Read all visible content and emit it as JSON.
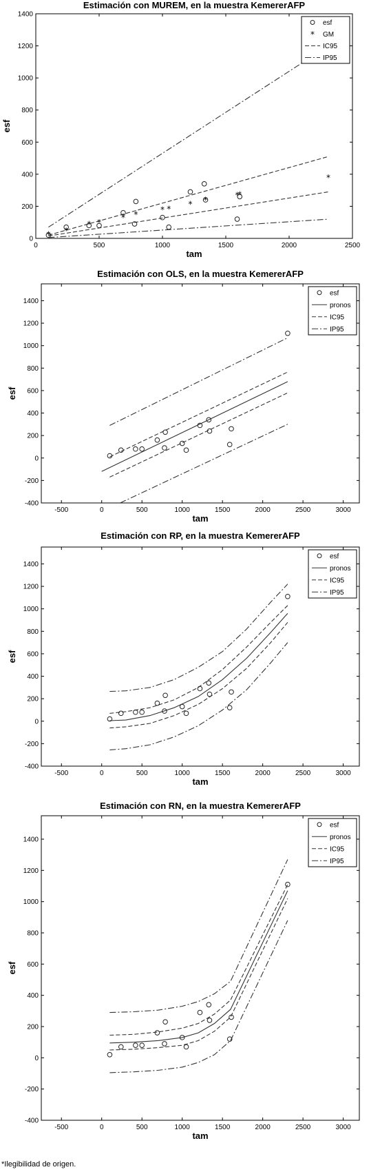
{
  "footnote": "*Ilegibilidad de origen.",
  "chart_data": [
    {
      "type": "scatter",
      "title": "Estimación con MUREM, en la muestra KemererAFP",
      "xlabel": "tam",
      "ylabel": "esf",
      "xlim": [
        0,
        2500
      ],
      "ylim": [
        0,
        1400
      ],
      "xticks": [
        0,
        500,
        1000,
        1500,
        2000,
        2500
      ],
      "yticks": [
        0,
        200,
        400,
        600,
        800,
        1000,
        1200,
        1400
      ],
      "legend_position": "top-right",
      "legend": [
        "esf",
        "GM",
        "IC95",
        "IP95"
      ],
      "points": {
        "esf": {
          "x": [
            100,
            240,
            420,
            500,
            690,
            780,
            790,
            1000,
            1050,
            1220,
            1330,
            1340,
            1590,
            1610,
            2310
          ],
          "y": [
            20,
            70,
            80,
            80,
            160,
            90,
            230,
            130,
            70,
            290,
            340,
            240,
            120,
            260,
            1110
          ]
        },
        "GM": {
          "x": [
            100,
            240,
            420,
            500,
            690,
            790,
            1000,
            1050,
            1220,
            1340,
            1590,
            1610,
            2310
          ],
          "y": [
            25,
            50,
            90,
            100,
            130,
            150,
            180,
            185,
            215,
            240,
            270,
            275,
            380
          ]
        }
      },
      "lines": [
        {
          "name": "IC95",
          "style": "dashed",
          "x": [
            100,
            2310
          ],
          "y": [
            20,
            510
          ]
        },
        {
          "name": "IC95",
          "style": "dashed",
          "x": [
            100,
            2310
          ],
          "y": [
            15,
            290
          ]
        },
        {
          "name": "IP95",
          "style": "dashdot",
          "x": [
            100,
            2310
          ],
          "y": [
            70,
            1200
          ]
        },
        {
          "name": "IP95",
          "style": "dashdot",
          "x": [
            100,
            2310
          ],
          "y": [
            5,
            120
          ]
        }
      ]
    },
    {
      "type": "scatter",
      "title": "Estimación con OLS, en la muestra KemererAFP",
      "xlabel": "tam",
      "ylabel": "esf",
      "xlim": [
        -750,
        3200
      ],
      "ylim": [
        -400,
        1550
      ],
      "xticks": [
        -500,
        0,
        500,
        1000,
        1500,
        2000,
        2500,
        3000
      ],
      "yticks": [
        -400,
        -200,
        0,
        200,
        400,
        600,
        800,
        1000,
        1200,
        1400
      ],
      "legend_position": "top-right",
      "legend": [
        "esf",
        "pronos",
        "IC95",
        "IP95"
      ],
      "points": {
        "esf": {
          "x": [
            100,
            240,
            420,
            500,
            690,
            780,
            790,
            1000,
            1050,
            1220,
            1330,
            1340,
            1590,
            1610,
            2310
          ],
          "y": [
            20,
            70,
            80,
            80,
            160,
            90,
            230,
            130,
            70,
            290,
            340,
            240,
            120,
            260,
            1110
          ]
        }
      },
      "lines": [
        {
          "name": "pronos",
          "style": "solid",
          "x": [
            0,
            2310
          ],
          "y": [
            -120,
            680
          ]
        },
        {
          "name": "IC95",
          "style": "dashed",
          "x": [
            100,
            2310
          ],
          "y": [
            10,
            765
          ]
        },
        {
          "name": "IC95",
          "style": "dashed",
          "x": [
            100,
            2310
          ],
          "y": [
            -170,
            580
          ]
        },
        {
          "name": "IP95",
          "style": "dashdot",
          "x": [
            100,
            2310
          ],
          "y": [
            290,
            1070
          ]
        },
        {
          "name": "IP95",
          "style": "dashdot",
          "x": [
            230,
            2310
          ],
          "y": [
            -400,
            300
          ]
        }
      ]
    },
    {
      "type": "scatter",
      "title": "Estimación con RP, en la muestra KemererAFP",
      "xlabel": "tam",
      "ylabel": "esf",
      "xlim": [
        -750,
        3200
      ],
      "ylim": [
        -400,
        1550
      ],
      "xticks": [
        -500,
        0,
        500,
        1000,
        1500,
        2000,
        2500,
        3000
      ],
      "yticks": [
        -400,
        -200,
        0,
        200,
        400,
        600,
        800,
        1000,
        1200,
        1400
      ],
      "legend_position": "top-right",
      "legend": [
        "esf",
        "pronos",
        "IC95",
        "IP95"
      ],
      "points": {
        "esf": {
          "x": [
            100,
            240,
            420,
            500,
            690,
            780,
            790,
            1000,
            1050,
            1220,
            1330,
            1340,
            1590,
            1610,
            2310
          ],
          "y": [
            20,
            70,
            80,
            80,
            160,
            90,
            230,
            130,
            70,
            290,
            340,
            240,
            120,
            260,
            1110
          ]
        }
      },
      "lines": [
        {
          "name": "pronos",
          "style": "solid",
          "x": [
            100,
            300,
            600,
            900,
            1200,
            1500,
            1800,
            2100,
            2310
          ],
          "y": [
            5,
            10,
            50,
            120,
            220,
            370,
            560,
            790,
            960
          ]
        },
        {
          "name": "IC95",
          "style": "dashed",
          "x": [
            100,
            300,
            600,
            900,
            1200,
            1500,
            1800,
            2100,
            2310
          ],
          "y": [
            70,
            85,
            120,
            190,
            300,
            460,
            660,
            880,
            1030
          ]
        },
        {
          "name": "IC95",
          "style": "dashed",
          "x": [
            100,
            300,
            600,
            900,
            1200,
            1500,
            1800,
            2100,
            2310
          ],
          "y": [
            -60,
            -50,
            -20,
            50,
            150,
            290,
            470,
            700,
            880
          ]
        },
        {
          "name": "IP95",
          "style": "dashdot",
          "x": [
            100,
            300,
            600,
            900,
            1200,
            1500,
            1800,
            2100,
            2310
          ],
          "y": [
            265,
            270,
            300,
            370,
            480,
            620,
            820,
            1060,
            1220
          ]
        },
        {
          "name": "IP95",
          "style": "dashdot",
          "x": [
            100,
            300,
            600,
            900,
            1200,
            1500,
            1800,
            2100,
            2310
          ],
          "y": [
            -255,
            -245,
            -210,
            -140,
            -40,
            100,
            280,
            520,
            700
          ]
        }
      ]
    },
    {
      "type": "scatter",
      "title": "Estimación con RN, en la muestra KemererAFP",
      "xlabel": "tam",
      "ylabel": "esf",
      "xlim": [
        -750,
        3200
      ],
      "ylim": [
        -400,
        1550
      ],
      "xticks": [
        -500,
        0,
        500,
        1000,
        1500,
        2000,
        2500,
        3000
      ],
      "yticks": [
        -400,
        -200,
        0,
        200,
        400,
        600,
        800,
        1000,
        1200,
        1400
      ],
      "legend_position": "top-right",
      "legend": [
        "esf",
        "pronos",
        "IC95",
        "IP95"
      ],
      "points": {
        "esf": {
          "x": [
            100,
            240,
            420,
            500,
            690,
            780,
            790,
            1000,
            1050,
            1220,
            1330,
            1340,
            1590,
            1610,
            2310
          ],
          "y": [
            20,
            70,
            80,
            80,
            160,
            90,
            230,
            130,
            70,
            290,
            340,
            240,
            120,
            260,
            1110
          ]
        }
      },
      "lines": [
        {
          "name": "pronos",
          "style": "solid",
          "x": [
            100,
            400,
            700,
            1000,
            1200,
            1400,
            1600,
            2310
          ],
          "y": [
            95,
            100,
            110,
            130,
            160,
            220,
            310,
            1070
          ]
        },
        {
          "name": "IC95",
          "style": "dashed",
          "x": [
            100,
            400,
            700,
            1000,
            1200,
            1400,
            1600,
            2310
          ],
          "y": [
            145,
            150,
            165,
            190,
            220,
            280,
            370,
            1110
          ]
        },
        {
          "name": "IC95",
          "style": "dashed",
          "x": [
            100,
            400,
            700,
            1000,
            1200,
            1400,
            1600,
            2310
          ],
          "y": [
            50,
            55,
            65,
            80,
            110,
            170,
            260,
            1020
          ]
        },
        {
          "name": "IP95",
          "style": "dashdot",
          "x": [
            100,
            400,
            700,
            1000,
            1200,
            1400,
            1600,
            2310
          ],
          "y": [
            290,
            295,
            305,
            330,
            360,
            410,
            490,
            1270
          ]
        },
        {
          "name": "IP95",
          "style": "dashdot",
          "x": [
            100,
            400,
            700,
            1000,
            1200,
            1400,
            1600,
            2310
          ],
          "y": [
            -95,
            -90,
            -80,
            -60,
            -30,
            20,
            110,
            880
          ]
        }
      ]
    }
  ]
}
